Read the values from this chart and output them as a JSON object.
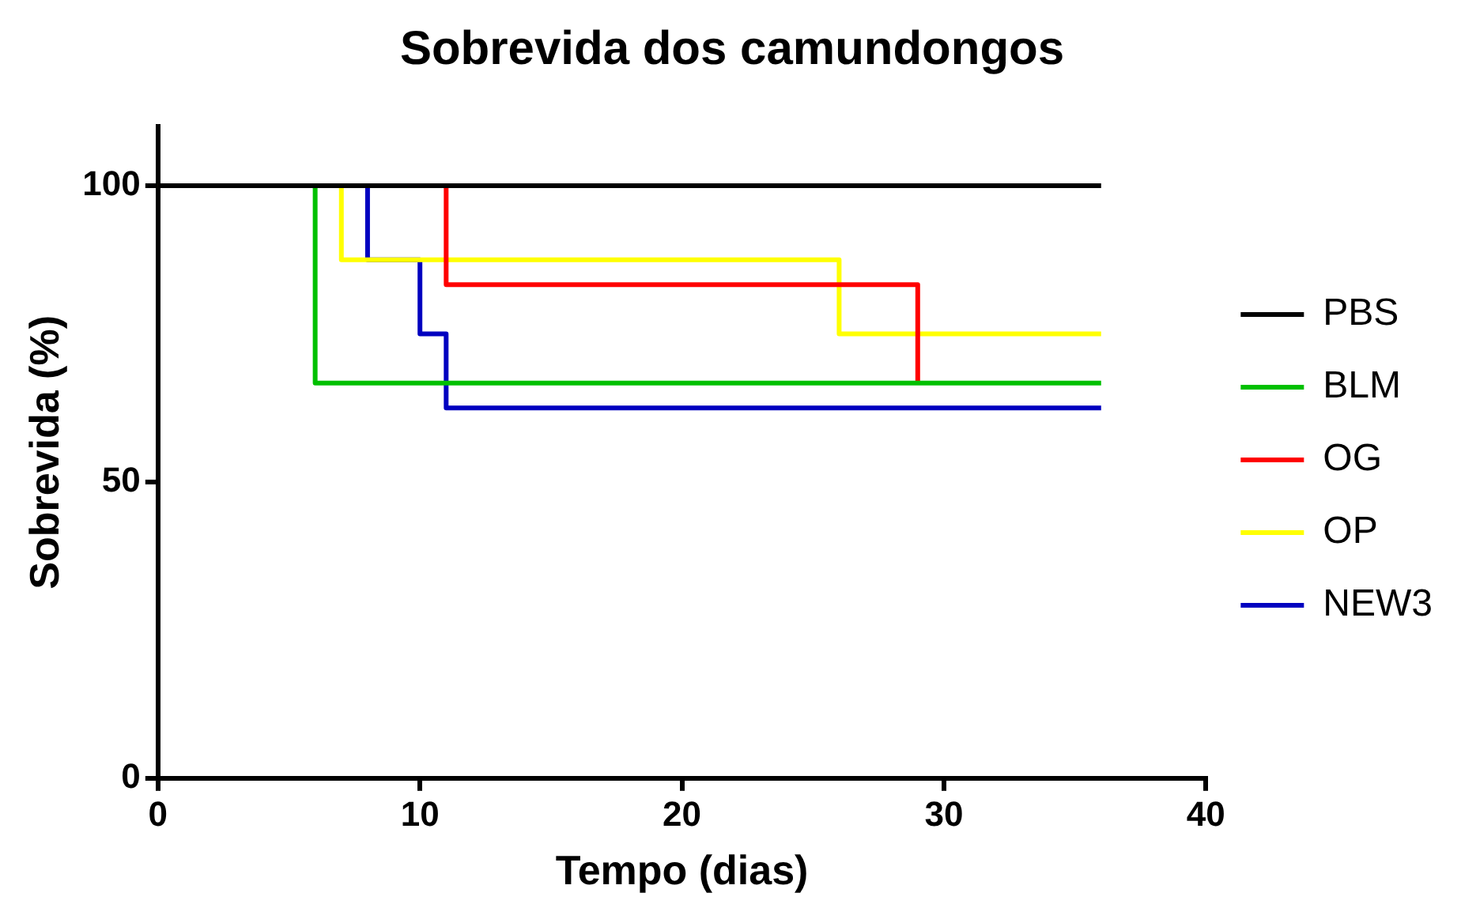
{
  "chart_data": {
    "type": "step",
    "title": "Sobrevida dos camundongos",
    "xlabel": "Tempo (dias)",
    "ylabel": "Sobrevida (%)",
    "xlim": [
      0,
      40
    ],
    "xticks": [
      0,
      10,
      20,
      30,
      40
    ],
    "ylim": [
      0,
      110
    ],
    "yticks": [
      0,
      50,
      100
    ],
    "grid": false,
    "legend": "right",
    "marker": "none",
    "line_style": "solid",
    "series": [
      {
        "name": "PBS",
        "color": "#000000",
        "x": [
          0,
          36
        ],
        "values": [
          100,
          100
        ]
      },
      {
        "name": "BLM",
        "color": "#00c000",
        "x": [
          0,
          6,
          36
        ],
        "values": [
          100,
          66.7,
          66.7
        ]
      },
      {
        "name": "OG",
        "color": "#ff0000",
        "x": [
          0,
          11,
          29
        ],
        "values": [
          100,
          83.3,
          66.7
        ]
      },
      {
        "name": "OP",
        "color": "#ffff00",
        "x": [
          0,
          7,
          26,
          36
        ],
        "values": [
          100,
          87.5,
          75,
          75
        ]
      },
      {
        "name": "NEW3",
        "color": "#0000c0",
        "x": [
          0,
          8,
          10,
          11,
          36
        ],
        "values": [
          100,
          87.5,
          75,
          62.5,
          62.5
        ]
      }
    ]
  }
}
